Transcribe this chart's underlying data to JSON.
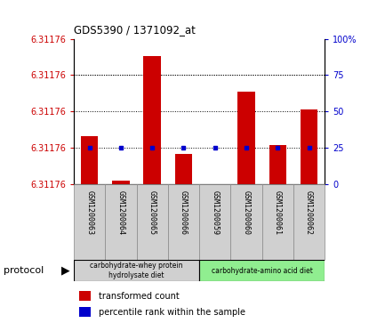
{
  "title": "GDS5390 / 1371092_at",
  "samples": [
    "GSM1200063",
    "GSM1200064",
    "GSM1200065",
    "GSM1200066",
    "GSM1200059",
    "GSM1200060",
    "GSM1200061",
    "GSM1200062"
  ],
  "bar_values": [
    6.3123,
    6.3118,
    6.3132,
    6.3121,
    6.31176,
    6.3128,
    6.3122,
    6.3126
  ],
  "percentile_values": [
    25,
    25,
    25,
    25,
    25,
    25,
    25,
    25
  ],
  "bar_color": "#cc0000",
  "percentile_color": "#0000cc",
  "ybase": 6.31176,
  "ytop": 6.3134,
  "ylim_right": [
    0,
    100
  ],
  "yticks_right": [
    0,
    25,
    50,
    75,
    100
  ],
  "yticklabels_right": [
    "0",
    "25",
    "50",
    "75",
    "100%"
  ],
  "ytick_label_left": "6.31176",
  "group1_label": "carbohydrate-whey protein\nhydrolysate diet",
  "group2_label": "carbohydrate-amino acid diet",
  "group1_color": "#d0d0d0",
  "group2_color": "#90ee90",
  "protocol_label": "protocol",
  "legend_items": [
    {
      "label": "transformed count",
      "color": "#cc0000"
    },
    {
      "label": "percentile rank within the sample",
      "color": "#0000cc"
    }
  ],
  "bar_color_legend": "#cc0000",
  "pct_color_legend": "#0000cc",
  "bar_width": 0.55,
  "fig_width": 4.15,
  "fig_height": 3.63
}
